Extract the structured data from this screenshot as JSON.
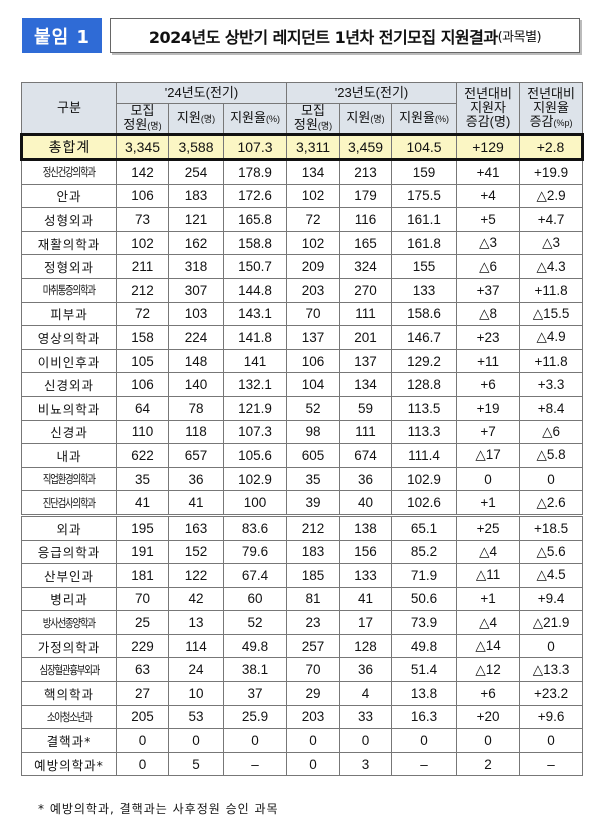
{
  "badge": "붙임 1",
  "title": "2024년도 상반기 레지던트 1년차 전기모집 지원결과",
  "title_sub": "(과목별)",
  "header": {
    "category": "구분",
    "y2024": "'24년도(전기)",
    "y2023": "'23년도(전기)",
    "quota_a": "모집",
    "quota_b": "정원",
    "unit_people": "(명)",
    "applied": "지원",
    "rate": "지원율",
    "unit_pct": "(%)",
    "diff_applicants_a": "전년대비",
    "diff_applicants_b": "지원자",
    "diff_applicants_c": "증감(명)",
    "diff_rate_a": "전년대비",
    "diff_rate_b": "지원율",
    "diff_rate_c": "증감",
    "unit_pp": "(%p)"
  },
  "total": [
    "총합계",
    "3,345",
    "3,588",
    "107.3",
    "3,311",
    "3,459",
    "104.5",
    "+129",
    "+2.8"
  ],
  "rows": [
    [
      "정신건강의학과",
      "142",
      "254",
      "178.9",
      "134",
      "213",
      "159",
      "+41",
      "+19.9"
    ],
    [
      "안과",
      "106",
      "183",
      "172.6",
      "102",
      "179",
      "175.5",
      "+4",
      "△2.9"
    ],
    [
      "성형외과",
      "73",
      "121",
      "165.8",
      "72",
      "116",
      "161.1",
      "+5",
      "+4.7"
    ],
    [
      "재활의학과",
      "102",
      "162",
      "158.8",
      "102",
      "165",
      "161.8",
      "△3",
      "△3"
    ],
    [
      "정형외과",
      "211",
      "318",
      "150.7",
      "209",
      "324",
      "155",
      "△6",
      "△4.3"
    ],
    [
      "마취통증의학과",
      "212",
      "307",
      "144.8",
      "203",
      "270",
      "133",
      "+37",
      "+11.8"
    ],
    [
      "피부과",
      "72",
      "103",
      "143.1",
      "70",
      "111",
      "158.6",
      "△8",
      "△15.5"
    ],
    [
      "영상의학과",
      "158",
      "224",
      "141.8",
      "137",
      "201",
      "146.7",
      "+23",
      "△4.9"
    ],
    [
      "이비인후과",
      "105",
      "148",
      "141",
      "106",
      "137",
      "129.2",
      "+11",
      "+11.8"
    ],
    [
      "신경외과",
      "106",
      "140",
      "132.1",
      "104",
      "134",
      "128.8",
      "+6",
      "+3.3"
    ],
    [
      "비뇨의학과",
      "64",
      "78",
      "121.9",
      "52",
      "59",
      "113.5",
      "+19",
      "+8.4"
    ],
    [
      "신경과",
      "110",
      "118",
      "107.3",
      "98",
      "111",
      "113.3",
      "+7",
      "△6"
    ],
    [
      "내과",
      "622",
      "657",
      "105.6",
      "605",
      "674",
      "111.4",
      "△17",
      "△5.8"
    ],
    [
      "직업환경의학과",
      "35",
      "36",
      "102.9",
      "35",
      "36",
      "102.9",
      "0",
      "0"
    ],
    [
      "진단검사의학과",
      "41",
      "41",
      "100",
      "39",
      "40",
      "102.6",
      "+1",
      "△2.6"
    ],
    [
      "외과",
      "195",
      "163",
      "83.6",
      "212",
      "138",
      "65.1",
      "+25",
      "+18.5"
    ],
    [
      "응급의학과",
      "191",
      "152",
      "79.6",
      "183",
      "156",
      "85.2",
      "△4",
      "△5.6"
    ],
    [
      "산부인과",
      "181",
      "122",
      "67.4",
      "185",
      "133",
      "71.9",
      "△11",
      "△4.5"
    ],
    [
      "병리과",
      "70",
      "42",
      "60",
      "81",
      "41",
      "50.6",
      "+1",
      "+9.4"
    ],
    [
      "방사선종양학과",
      "25",
      "13",
      "52",
      "23",
      "17",
      "73.9",
      "△4",
      "△21.9"
    ],
    [
      "가정의학과",
      "229",
      "114",
      "49.8",
      "257",
      "128",
      "49.8",
      "△14",
      "0"
    ],
    [
      "심장혈관흉부외과",
      "63",
      "24",
      "38.1",
      "70",
      "36",
      "51.4",
      "△12",
      "△13.3"
    ],
    [
      "핵의학과",
      "27",
      "10",
      "37",
      "29",
      "4",
      "13.8",
      "+6",
      "+23.2"
    ],
    [
      "소아청소년과",
      "205",
      "53",
      "25.9",
      "203",
      "33",
      "16.3",
      "+20",
      "+9.6"
    ],
    [
      "결핵과*",
      "0",
      "0",
      "0",
      "0",
      "0",
      "0",
      "0",
      "0"
    ],
    [
      "예방의학과*",
      "0",
      "5",
      "–",
      "0",
      "3",
      "–",
      "2",
      "–"
    ]
  ],
  "footnote": "* 예방의학과, 결핵과는 사후정원 승인 과목",
  "colors": {
    "badge": "#2f6bd6",
    "header_bg": "#dde3ea",
    "total_bg": "#fbf6c4"
  }
}
